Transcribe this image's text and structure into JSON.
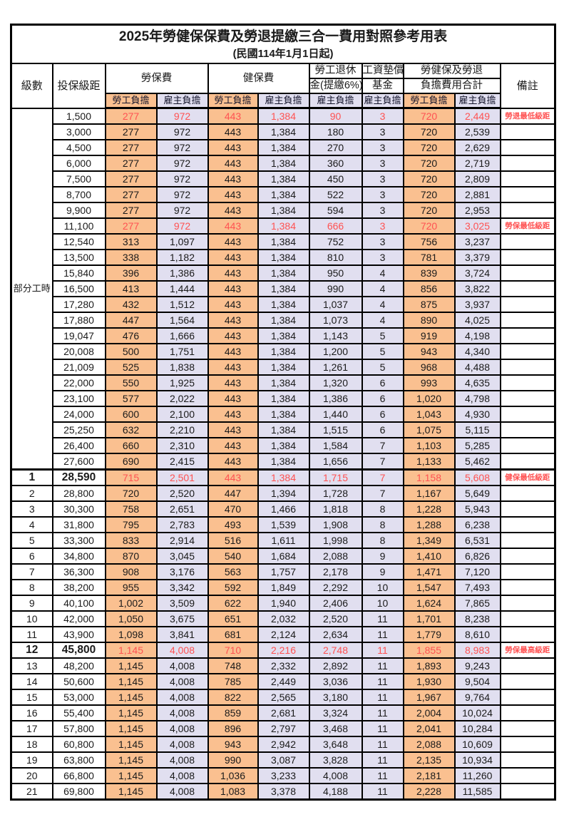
{
  "title": "2025年勞健保保費及勞退提繳三合一費用對照參考用表",
  "subtitle": "(民國114年1月1日起)",
  "header": {
    "level": "級數",
    "bracket": "投保級距",
    "labor_insurance": "勞保費",
    "health_insurance": "健保費",
    "pension_line1": "勞工退休",
    "pension_line2": "金(提繳6%)",
    "wage_fund_line1": "工資墊償",
    "wage_fund_line2": "基金",
    "total_line1": "勞健保及勞退",
    "total_line2": "負擔費用合計",
    "remark": "備註",
    "employee": "勞工負擔",
    "employer": "雇主負擔"
  },
  "part_time": {
    "label": "部分工時",
    "row_span": 23
  },
  "colors": {
    "employee_bg": "#FAC090",
    "employer_bg": "#E1DFF0",
    "highlight_red": "#FF5252",
    "border": "#000000"
  },
  "row_columns": [
    "level",
    "bracket",
    "labor_employee",
    "labor_employer",
    "health_employee",
    "health_employer",
    "pension_employer",
    "fund_employer",
    "total_employee",
    "total_employer",
    "remark"
  ],
  "special_row_indexes": [
    0,
    7,
    23,
    34
  ],
  "bold_row_indexes": [
    23,
    34
  ],
  "thick_top_row_indexes": [
    23
  ],
  "rows": [
    [
      "",
      "1,500",
      "277",
      "972",
      "443",
      "1,384",
      "90",
      "3",
      "720",
      "2,449",
      "勞退最低級距"
    ],
    [
      "",
      "3,000",
      "277",
      "972",
      "443",
      "1,384",
      "180",
      "3",
      "720",
      "2,539",
      ""
    ],
    [
      "",
      "4,500",
      "277",
      "972",
      "443",
      "1,384",
      "270",
      "3",
      "720",
      "2,629",
      ""
    ],
    [
      "",
      "6,000",
      "277",
      "972",
      "443",
      "1,384",
      "360",
      "3",
      "720",
      "2,719",
      ""
    ],
    [
      "",
      "7,500",
      "277",
      "972",
      "443",
      "1,384",
      "450",
      "3",
      "720",
      "2,809",
      ""
    ],
    [
      "",
      "8,700",
      "277",
      "972",
      "443",
      "1,384",
      "522",
      "3",
      "720",
      "2,881",
      ""
    ],
    [
      "",
      "9,900",
      "277",
      "972",
      "443",
      "1,384",
      "594",
      "3",
      "720",
      "2,953",
      ""
    ],
    [
      "",
      "11,100",
      "277",
      "972",
      "443",
      "1,384",
      "666",
      "3",
      "720",
      "3,025",
      "勞保最低級距"
    ],
    [
      "",
      "12,540",
      "313",
      "1,097",
      "443",
      "1,384",
      "752",
      "3",
      "756",
      "3,237",
      ""
    ],
    [
      "",
      "13,500",
      "338",
      "1,182",
      "443",
      "1,384",
      "810",
      "3",
      "781",
      "3,379",
      ""
    ],
    [
      "",
      "15,840",
      "396",
      "1,386",
      "443",
      "1,384",
      "950",
      "4",
      "839",
      "3,724",
      ""
    ],
    [
      "",
      "16,500",
      "413",
      "1,444",
      "443",
      "1,384",
      "990",
      "4",
      "856",
      "3,822",
      ""
    ],
    [
      "",
      "17,280",
      "432",
      "1,512",
      "443",
      "1,384",
      "1,037",
      "4",
      "875",
      "3,937",
      ""
    ],
    [
      "",
      "17,880",
      "447",
      "1,564",
      "443",
      "1,384",
      "1,073",
      "4",
      "890",
      "4,025",
      ""
    ],
    [
      "",
      "19,047",
      "476",
      "1,666",
      "443",
      "1,384",
      "1,143",
      "5",
      "919",
      "4,198",
      ""
    ],
    [
      "",
      "20,008",
      "500",
      "1,751",
      "443",
      "1,384",
      "1,200",
      "5",
      "943",
      "4,340",
      ""
    ],
    [
      "",
      "21,009",
      "525",
      "1,838",
      "443",
      "1,384",
      "1,261",
      "5",
      "968",
      "4,488",
      ""
    ],
    [
      "",
      "22,000",
      "550",
      "1,925",
      "443",
      "1,384",
      "1,320",
      "6",
      "993",
      "4,635",
      ""
    ],
    [
      "",
      "23,100",
      "577",
      "2,022",
      "443",
      "1,384",
      "1,386",
      "6",
      "1,020",
      "4,798",
      ""
    ],
    [
      "",
      "24,000",
      "600",
      "2,100",
      "443",
      "1,384",
      "1,440",
      "6",
      "1,043",
      "4,930",
      ""
    ],
    [
      "",
      "25,250",
      "632",
      "2,210",
      "443",
      "1,384",
      "1,515",
      "6",
      "1,075",
      "5,115",
      ""
    ],
    [
      "",
      "26,400",
      "660",
      "2,310",
      "443",
      "1,384",
      "1,584",
      "7",
      "1,103",
      "5,285",
      ""
    ],
    [
      "",
      "27,600",
      "690",
      "2,415",
      "443",
      "1,384",
      "1,656",
      "7",
      "1,133",
      "5,462",
      ""
    ],
    [
      "1",
      "28,590",
      "715",
      "2,501",
      "443",
      "1,384",
      "1,715",
      "7",
      "1,158",
      "5,608",
      "健保最低級距"
    ],
    [
      "2",
      "28,800",
      "720",
      "2,520",
      "447",
      "1,394",
      "1,728",
      "7",
      "1,167",
      "5,649",
      ""
    ],
    [
      "3",
      "30,300",
      "758",
      "2,651",
      "470",
      "1,466",
      "1,818",
      "8",
      "1,228",
      "5,943",
      ""
    ],
    [
      "4",
      "31,800",
      "795",
      "2,783",
      "493",
      "1,539",
      "1,908",
      "8",
      "1,288",
      "6,238",
      ""
    ],
    [
      "5",
      "33,300",
      "833",
      "2,914",
      "516",
      "1,611",
      "1,998",
      "8",
      "1,349",
      "6,531",
      ""
    ],
    [
      "6",
      "34,800",
      "870",
      "3,045",
      "540",
      "1,684",
      "2,088",
      "9",
      "1,410",
      "6,826",
      ""
    ],
    [
      "7",
      "36,300",
      "908",
      "3,176",
      "563",
      "1,757",
      "2,178",
      "9",
      "1,471",
      "7,120",
      ""
    ],
    [
      "8",
      "38,200",
      "955",
      "3,342",
      "592",
      "1,849",
      "2,292",
      "10",
      "1,547",
      "7,493",
      ""
    ],
    [
      "9",
      "40,100",
      "1,002",
      "3,509",
      "622",
      "1,940",
      "2,406",
      "10",
      "1,624",
      "7,865",
      ""
    ],
    [
      "10",
      "42,000",
      "1,050",
      "3,675",
      "651",
      "2,032",
      "2,520",
      "11",
      "1,701",
      "8,238",
      ""
    ],
    [
      "11",
      "43,900",
      "1,098",
      "3,841",
      "681",
      "2,124",
      "2,634",
      "11",
      "1,779",
      "8,610",
      ""
    ],
    [
      "12",
      "45,800",
      "1,145",
      "4,008",
      "710",
      "2,216",
      "2,748",
      "11",
      "1,855",
      "8,983",
      "勞保最高級距"
    ],
    [
      "13",
      "48,200",
      "1,145",
      "4,008",
      "748",
      "2,332",
      "2,892",
      "11",
      "1,893",
      "9,243",
      ""
    ],
    [
      "14",
      "50,600",
      "1,145",
      "4,008",
      "785",
      "2,449",
      "3,036",
      "11",
      "1,930",
      "9,504",
      ""
    ],
    [
      "15",
      "53,000",
      "1,145",
      "4,008",
      "822",
      "2,565",
      "3,180",
      "11",
      "1,967",
      "9,764",
      ""
    ],
    [
      "16",
      "55,400",
      "1,145",
      "4,008",
      "859",
      "2,681",
      "3,324",
      "11",
      "2,004",
      "10,024",
      ""
    ],
    [
      "17",
      "57,800",
      "1,145",
      "4,008",
      "896",
      "2,797",
      "3,468",
      "11",
      "2,041",
      "10,284",
      ""
    ],
    [
      "18",
      "60,800",
      "1,145",
      "4,008",
      "943",
      "2,942",
      "3,648",
      "11",
      "2,088",
      "10,609",
      ""
    ],
    [
      "19",
      "63,800",
      "1,145",
      "4,008",
      "990",
      "3,087",
      "3,828",
      "11",
      "2,135",
      "10,934",
      ""
    ],
    [
      "20",
      "66,800",
      "1,145",
      "4,008",
      "1,036",
      "3,233",
      "4,008",
      "11",
      "2,181",
      "11,260",
      ""
    ],
    [
      "21",
      "69,800",
      "1,145",
      "4,008",
      "1,083",
      "3,378",
      "4,188",
      "11",
      "2,228",
      "11,585",
      ""
    ]
  ]
}
